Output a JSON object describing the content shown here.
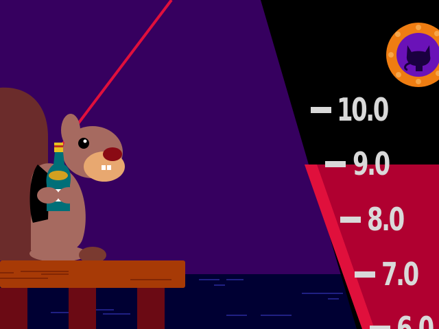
{
  "game": {
    "meter": {
      "labels": [
        "10.0",
        "9.0",
        "8.0",
        "7.0",
        "6.0"
      ]
    },
    "badge_icon": "cat-silhouette-icon",
    "character": "squirrel-with-bottle",
    "colors": {
      "sky": "#36005f",
      "water": "#000033",
      "pier": "#a73a06",
      "pier_legs": "#6b0a14",
      "meter_red": "#b00030",
      "meter_black": "#000000",
      "laser": "#e0103c",
      "badge_ring": "#ef7d12",
      "badge_inner": "#6a12b8"
    }
  }
}
